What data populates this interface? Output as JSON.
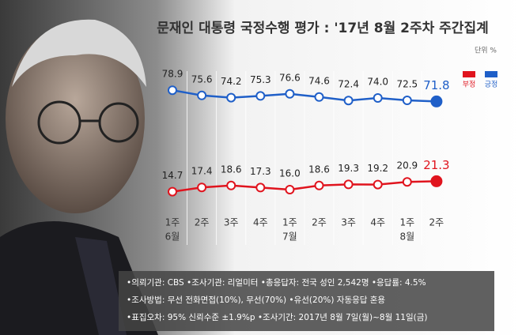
{
  "chart_data": {
    "type": "line",
    "title": "문재인 대통령 국정수행 평가 : '17년 8월 2주차 주간집계",
    "unit_label": "단위 %",
    "categories": [
      "1주",
      "2주",
      "3주",
      "4주",
      "1주",
      "2주",
      "3주",
      "4주",
      "1주",
      "2주"
    ],
    "month_labels": [
      "6월",
      null,
      null,
      null,
      "7월",
      null,
      null,
      null,
      "8월",
      null
    ],
    "series": [
      {
        "name": "긍정",
        "color": "#1f5fc8",
        "values": [
          78.9,
          75.6,
          74.2,
          75.3,
          76.6,
          74.6,
          72.4,
          74.0,
          72.5,
          71.8
        ],
        "value_labels": [
          "78.9",
          "75.6",
          "74.2",
          "75.3",
          "76.6",
          "74.6",
          "72.4",
          "74.0",
          "72.5",
          "71.8"
        ]
      },
      {
        "name": "부정",
        "color": "#e0141e",
        "values": [
          14.7,
          17.4,
          18.6,
          17.3,
          16.0,
          18.6,
          19.3,
          19.2,
          20.9,
          21.3
        ],
        "value_labels": [
          "14.7",
          "17.4",
          "18.6",
          "17.3",
          "16.0",
          "18.6",
          "19.3",
          "19.2",
          "20.9",
          "21.3"
        ]
      }
    ],
    "legend_order": [
      1,
      0
    ],
    "ylim": [
      10,
      82
    ],
    "notes": [
      "•의뢰기관: CBS •조사기관: 리얼미터 •총응답자: 전국 성인 2,542명 •응답률: 4.5%",
      "•조사방법: 무선 전화면접(10%), 무선(70%) •유선(20%) 자동응답 혼용",
      "•표집오차: 95% 신뢰수준 ±1.9%p •조사기간: 2017년 8월 7일(월)~8월 11일(금)"
    ]
  }
}
